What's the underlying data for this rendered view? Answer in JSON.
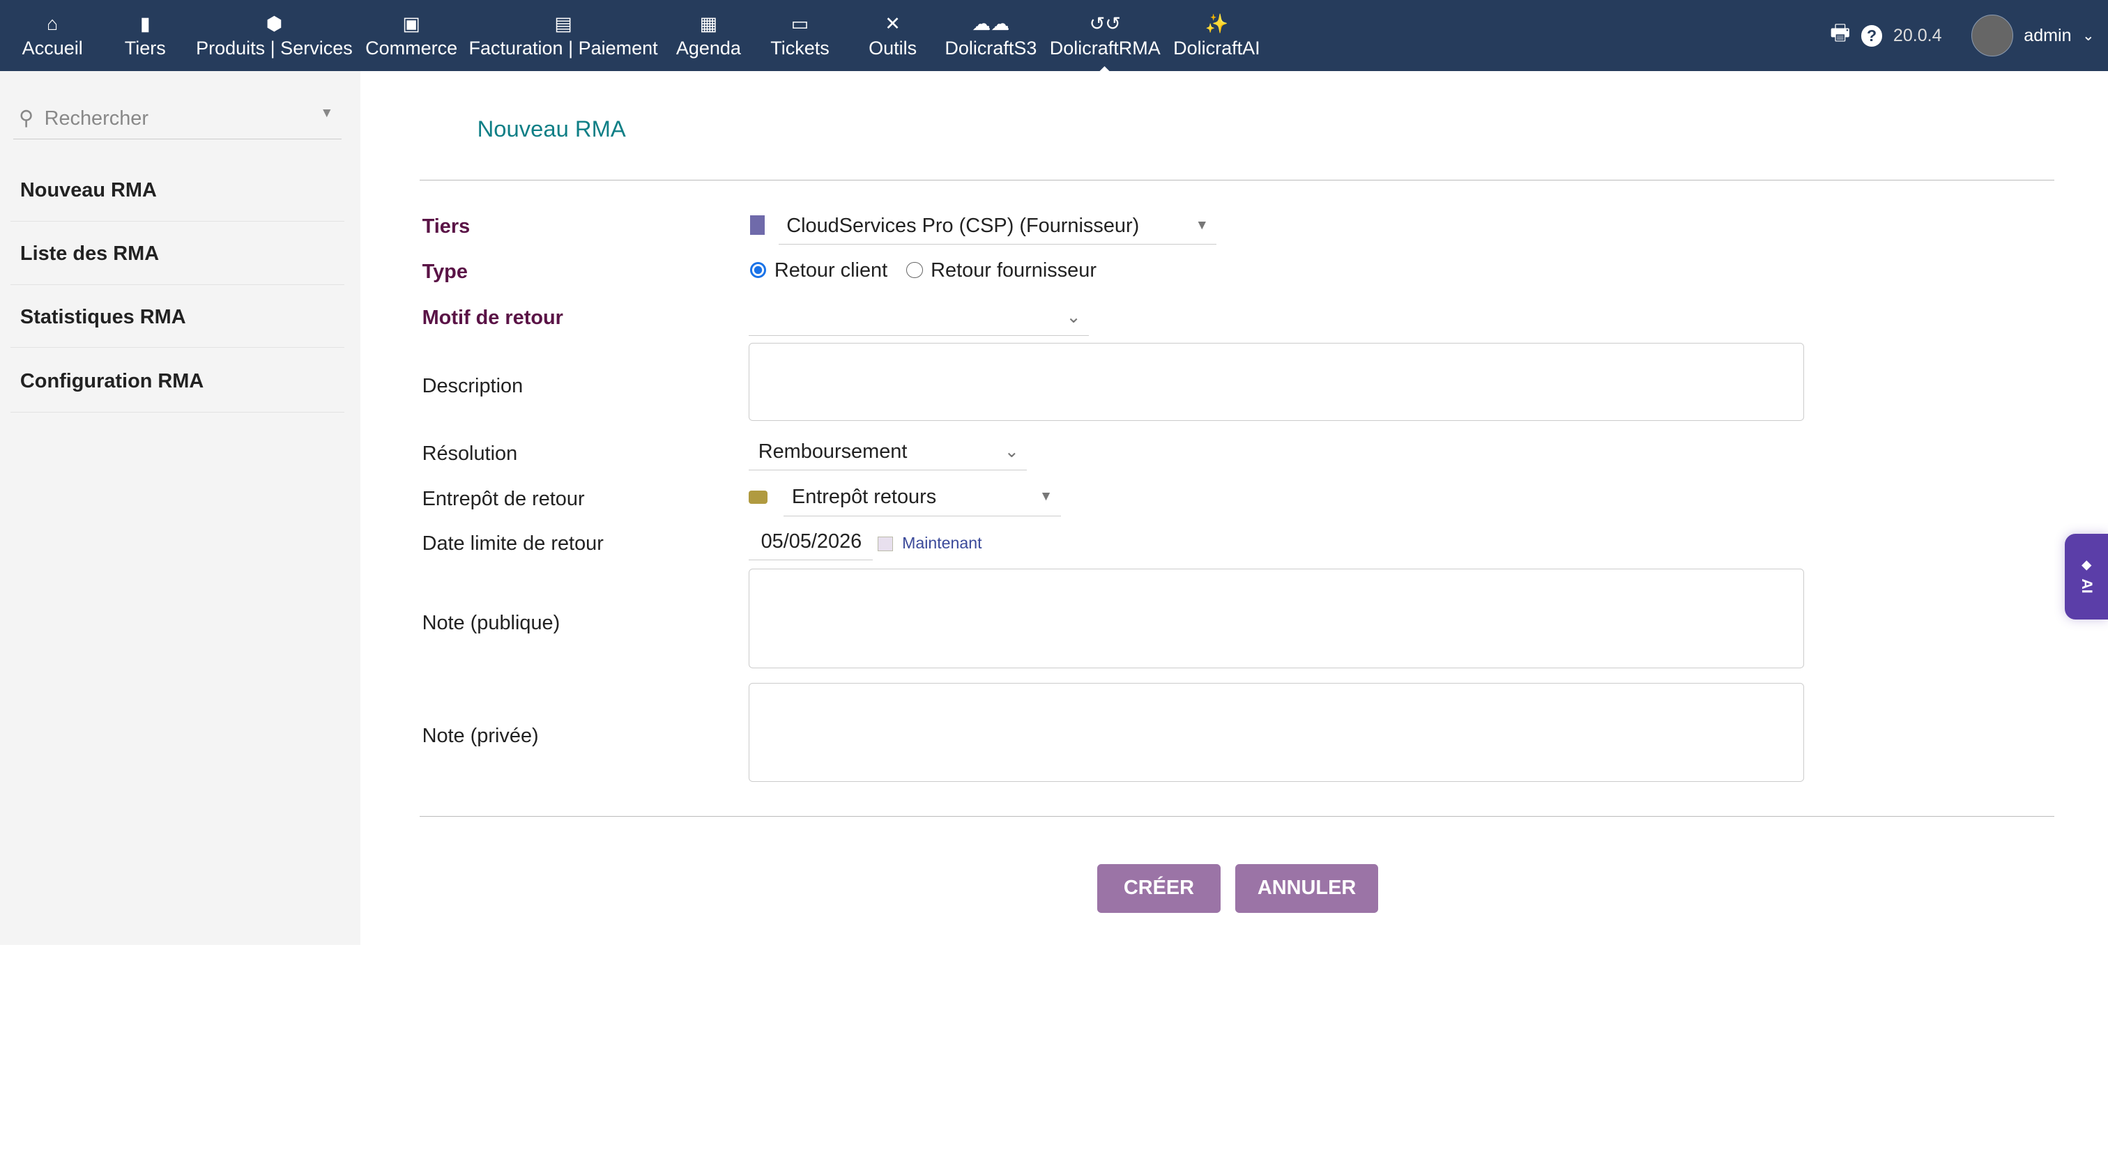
{
  "nav": {
    "items": [
      {
        "label": "Accueil",
        "icon": "home-icon",
        "glyph": "⌂"
      },
      {
        "label": "Tiers",
        "icon": "building-icon",
        "glyph": "▮"
      },
      {
        "label": "Produits | Services",
        "icon": "cube-icon",
        "glyph": "⬢"
      },
      {
        "label": "Commerce",
        "icon": "briefcase-icon",
        "glyph": "▣"
      },
      {
        "label": "Facturation | Paiement",
        "icon": "invoice-icon",
        "glyph": "▤"
      },
      {
        "label": "Agenda",
        "icon": "calendar-icon",
        "glyph": "▦"
      },
      {
        "label": "Tickets",
        "icon": "ticket-icon",
        "glyph": "▭"
      },
      {
        "label": "Outils",
        "icon": "tools-icon",
        "glyph": "✕"
      },
      {
        "label": "DolicraftS3",
        "icon": "cloud-icon",
        "glyph": "☁☁"
      },
      {
        "label": "DolicraftRMA",
        "icon": "undo-icon",
        "glyph": "↺↺"
      },
      {
        "label": "DolicraftAI",
        "icon": "magic-wand-icon",
        "glyph": "✨"
      }
    ],
    "active": "DolicraftRMA",
    "version": "20.0.4",
    "user": "admin"
  },
  "sidebar": {
    "search_placeholder": "Rechercher",
    "items": [
      "Nouveau RMA",
      "Liste des RMA",
      "Statistiques RMA",
      "Configuration RMA"
    ]
  },
  "page": {
    "title": "Nouveau RMA"
  },
  "form": {
    "tiers_label": "Tiers",
    "tiers_value": "CloudServices Pro (CSP) (Fournisseur)",
    "type_label": "Type",
    "type_options": [
      "Retour client",
      "Retour fournisseur"
    ],
    "type_selected": "Retour client",
    "motif_label": "Motif de retour",
    "motif_value": "",
    "description_label": "Description",
    "description_value": "",
    "resolution_label": "Résolution",
    "resolution_value": "Remboursement",
    "entrepot_label": "Entrepôt de retour",
    "entrepot_value": "Entrepôt retours",
    "date_label": "Date limite de retour",
    "date_value": "05/05/2026",
    "now_link": "Maintenant",
    "note_public_label": "Note (publique)",
    "note_private_label": "Note (privée)"
  },
  "buttons": {
    "create": "CRÉER",
    "cancel": "ANNULER"
  },
  "ai_tab": {
    "label": "AI"
  },
  "colors": {
    "nav_bg": "#263c5c",
    "accent": "#9b74a6",
    "title": "#0f7f86",
    "required_label": "#5a1346",
    "ai_tab": "#5b3ea8"
  }
}
